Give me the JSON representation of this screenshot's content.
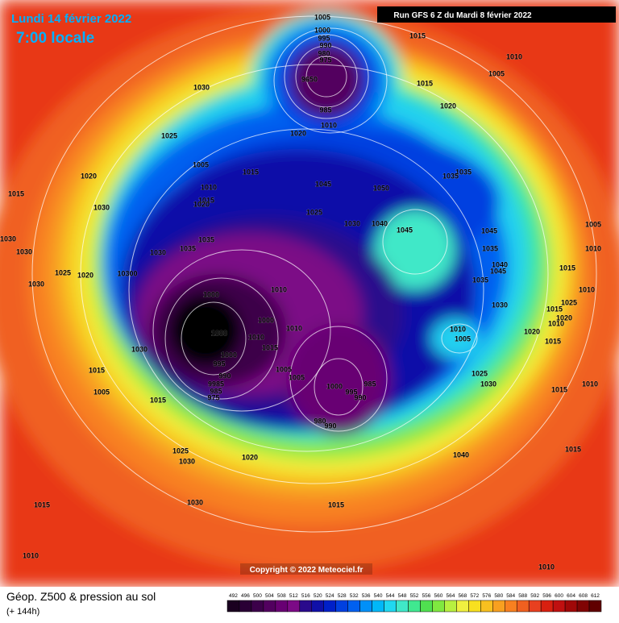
{
  "header": {
    "date": "Lundi 14 février 2022",
    "time": "7:00 locale",
    "run": "Run GFS 6 Z du Mardi 8 février 2022"
  },
  "footer": {
    "title": "Géop. Z500 & pression au sol",
    "lead": "(+ 144h)",
    "copyright": "Copyright © 2022 Meteociel.fr"
  },
  "legend": {
    "values": [
      492,
      496,
      500,
      504,
      508,
      512,
      516,
      520,
      524,
      528,
      532,
      536,
      540,
      544,
      548,
      552,
      556,
      560,
      564,
      568,
      572,
      576,
      580,
      584,
      588,
      592,
      596,
      600,
      604,
      608,
      612
    ],
    "colors": [
      "#1a0020",
      "#2a0035",
      "#3c004a",
      "#52005f",
      "#680073",
      "#7c0a86",
      "#2a0a8c",
      "#1010a8",
      "#0020c8",
      "#0040e0",
      "#0060f0",
      "#0090f8",
      "#00b8f8",
      "#20d8f0",
      "#40e8c8",
      "#40e890",
      "#50e050",
      "#80e840",
      "#b8f040",
      "#f0f040",
      "#f8e020",
      "#f8c020",
      "#f8a020",
      "#f88020",
      "#f06020",
      "#e84020",
      "#d82010",
      "#c01010",
      "#a00808",
      "#800404",
      "#600000"
    ]
  },
  "pressure_labels": [
    "1005",
    "1000",
    "995",
    "990",
    "980",
    "975",
    "9650",
    "985",
    "1010",
    "1015",
    "1010",
    "1005",
    "1015",
    "1020",
    "1030",
    "1025",
    "1020",
    "1005",
    "1015",
    "1010",
    "1015",
    "1020",
    "1020",
    "1015",
    "1030",
    "1045",
    "1050",
    "1035",
    "1035",
    "1025",
    "1030",
    "1040",
    "1045",
    "1045",
    "1005",
    "1010",
    "1035",
    "1040",
    "1045",
    "1035",
    "1015",
    "1010",
    "1035",
    "1035",
    "1030",
    "1030",
    "1030",
    "1025",
    "1020",
    "10300",
    "1030",
    "1010",
    "1000",
    "1030",
    "1025",
    "1015",
    "1020",
    "1010",
    "1000",
    "1000",
    "1010",
    "1010",
    "1015",
    "1010",
    "1005",
    "1020",
    "1015",
    "1030",
    "1000",
    "995",
    "990",
    "1005",
    "1005",
    "985",
    "1000",
    "995",
    "990",
    "1015",
    "1005",
    "1025",
    "1030",
    "1015",
    "1010",
    "1015",
    "9985",
    "985",
    "975",
    "980",
    "990",
    "1025",
    "1030",
    "1020",
    "1040",
    "1015",
    "1015",
    "1030",
    "1015",
    "1010",
    "1010"
  ]
}
